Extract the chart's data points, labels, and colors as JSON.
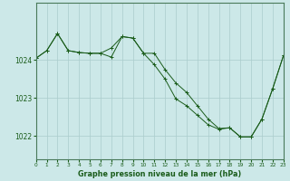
{
  "title": "Graphe pression niveau de la mer (hPa)",
  "bg_color": "#cce8e8",
  "plot_bg_color": "#cce8e8",
  "grid_color": "#aacccc",
  "line_color": "#1a5c1a",
  "xlim": [
    0,
    23
  ],
  "ylim": [
    1021.4,
    1025.5
  ],
  "yticks": [
    1022,
    1023,
    1024
  ],
  "series1_x": [
    0,
    1,
    2,
    3,
    4,
    5,
    6,
    7,
    8,
    9,
    10,
    11,
    12,
    13,
    14,
    15,
    16,
    17,
    18,
    19,
    20,
    21,
    22,
    23
  ],
  "series1_y": [
    1024.05,
    1024.25,
    1024.7,
    1024.25,
    1024.2,
    1024.18,
    1024.18,
    1024.08,
    1024.62,
    1024.58,
    1024.18,
    1024.18,
    1023.75,
    1023.4,
    1023.15,
    1022.8,
    1022.45,
    1022.2,
    1022.22,
    1021.98,
    1021.98,
    1022.45,
    1023.25,
    1024.12
  ],
  "series2_x": [
    0,
    1,
    2,
    3,
    4,
    5,
    6,
    7,
    8,
    9,
    10,
    11,
    12,
    13,
    14,
    15,
    16,
    17,
    18,
    19,
    20,
    21,
    22,
    23
  ],
  "series2_y": [
    1024.05,
    1024.25,
    1024.7,
    1024.25,
    1024.2,
    1024.18,
    1024.18,
    1024.32,
    1024.62,
    1024.58,
    1024.18,
    1023.88,
    1023.5,
    1022.98,
    1022.8,
    1022.55,
    1022.3,
    1022.18,
    1022.22,
    1021.98,
    1021.98,
    1022.45,
    1023.25,
    1024.12
  ]
}
